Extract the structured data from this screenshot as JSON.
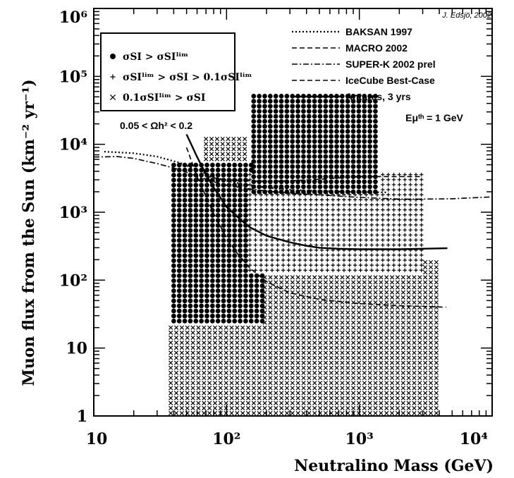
{
  "chart_data": {
    "type": "scatter",
    "title": "",
    "credit": "J. Edsjö, 2002",
    "xlabel": "Neutralino Mass (GeV)",
    "ylabel": "Muon flux from the Sun (km⁻² yr⁻¹)",
    "xscale": "log",
    "yscale": "log",
    "xlim": [
      10,
      10000
    ],
    "ylim": [
      1,
      1000000
    ],
    "x_ticks": [
      {
        "value": 10,
        "label": "10"
      },
      {
        "value": 100,
        "label": "10²"
      },
      {
        "value": 1000,
        "label": "10³"
      },
      {
        "value": 10000,
        "label": "10⁴"
      }
    ],
    "y_ticks": [
      {
        "value": 1,
        "label": "1"
      },
      {
        "value": 10,
        "label": "10"
      },
      {
        "value": 100,
        "label": "10²"
      },
      {
        "value": 1000,
        "label": "10³"
      },
      {
        "value": 10000,
        "label": "10⁴"
      },
      {
        "value": 100000,
        "label": "10⁵"
      },
      {
        "value": 1000000,
        "label": "10⁶"
      }
    ],
    "grid": false,
    "constraint_label": "0.05 < Ωh² < 0.2",
    "threshold_label": "Eμᵗʰ = 1 GeV",
    "marker_legend": {
      "placement": "top-left",
      "entries": [
        {
          "marker": "dot",
          "label": "σSI > σSIˡⁱᵐ"
        },
        {
          "marker": "plus",
          "label": "σSIˡⁱᵐ > σSI > 0.1σSIˡⁱᵐ"
        },
        {
          "marker": "cross",
          "label": "0.1σSIˡⁱᵐ > σSI"
        }
      ]
    },
    "limit_curves": [
      {
        "name": "BAKSAN 1997",
        "style": "dotted",
        "x": [
          12,
          20,
          30,
          45,
          60,
          80,
          100,
          150,
          200,
          300,
          500,
          800,
          1000,
          1600
        ],
        "y": [
          7800,
          7400,
          6600,
          5300,
          4200,
          3300,
          2900,
          2500,
          2300,
          2150,
          2050,
          2000,
          1980,
          1960
        ]
      },
      {
        "name": "MACRO 2002",
        "style": "dashed",
        "x": [
          70,
          80,
          100,
          150,
          200,
          300,
          500,
          800,
          1000,
          2000,
          3000
        ],
        "y": [
          3400,
          3200,
          3000,
          2900,
          2850,
          2900,
          3050,
          3250,
          3350,
          3350,
          3350
        ]
      },
      {
        "name": "SUPER-K 2002 prel",
        "style": "dashdot",
        "x": [
          10,
          15,
          20,
          30,
          45,
          60,
          80,
          100,
          150,
          200,
          300,
          500,
          1000,
          2000,
          3000,
          5000,
          10000
        ],
        "y": [
          6500,
          6600,
          6200,
          5200,
          4200,
          3400,
          2800,
          2500,
          2200,
          2050,
          1900,
          1800,
          1650,
          1560,
          1560,
          1580,
          1680
        ]
      },
      {
        "name": "IceCube Best-Case",
        "style": "dashed",
        "x": [
          50,
          60,
          70,
          80,
          100,
          120,
          150,
          200,
          300,
          500,
          1000,
          2000,
          3000,
          4500
        ],
        "y": [
          9000,
          3300,
          1700,
          950,
          420,
          250,
          150,
          95,
          65,
          52,
          45,
          42,
          41,
          40
        ]
      },
      {
        "name": "Antares, 3 yrs",
        "style": "solid",
        "x": [
          50,
          60,
          70,
          80,
          100,
          130,
          150,
          200,
          300,
          400,
          500,
          700,
          1000,
          2000,
          3000,
          4600
        ],
        "y": [
          14000,
          6500,
          3600,
          2300,
          1200,
          750,
          600,
          450,
          360,
          320,
          300,
          290,
          285,
          285,
          290,
          295
        ]
      }
    ],
    "scatter_regions": [
      {
        "marker": "dot",
        "x_min": 160,
        "x_max": 1350,
        "y_min": 2000,
        "y_max": 55000
      },
      {
        "marker": "plus",
        "x_min": 150,
        "x_max": 3200,
        "y_min": 140,
        "y_max": 4000
      },
      {
        "marker": "dot",
        "x_min": 40,
        "x_max": 200,
        "y_min": 25,
        "y_max": 5000
      },
      {
        "marker": "cross",
        "x_min": 38,
        "x_max": 4000,
        "y_min": 1.1,
        "y_max": 200
      },
      {
        "marker": "cross",
        "x_min": 70,
        "x_max": 150,
        "y_min": 200,
        "y_max": 14000
      }
    ]
  }
}
